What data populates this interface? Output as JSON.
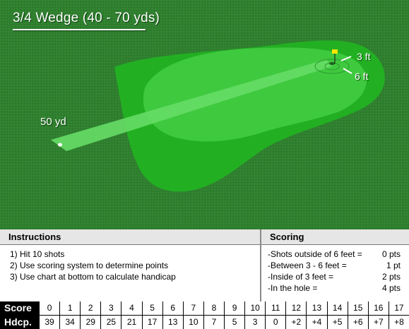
{
  "title": "3/4 Wedge (40 - 70 yds)",
  "green": {
    "labels": {
      "distance": "50 yd",
      "ring_inner": "3 ft",
      "ring_outer": "6 ft"
    },
    "icons": {
      "flag": "flag-icon",
      "ball": "ball-icon"
    },
    "colors": {
      "rough": "#2e7d2e",
      "fringe": "#2bb52b",
      "green": "#4fd64f",
      "tee_line": "#7be87b"
    }
  },
  "instructions": {
    "header": "Instructions",
    "items": [
      "1) Hit 10 shots",
      "2) Use scoring system to determine points",
      "3) Use chart at bottom to calculate handicap"
    ]
  },
  "scoring": {
    "header": "Scoring",
    "rules": [
      {
        "label": "-Shots outside of 6 feet =",
        "value": "0 pts"
      },
      {
        "label": "-Between 3 - 6 feet =",
        "value": "1 pt"
      },
      {
        "label": "-Inside of 3 feet =",
        "value": "2 pts"
      },
      {
        "label": "-In the hole =",
        "value": "4 pts"
      }
    ]
  },
  "table": {
    "score_label": "Score",
    "hdcp_label": "Hdcp.",
    "scores": [
      "0",
      "1",
      "2",
      "3",
      "4",
      "5",
      "6",
      "7",
      "8",
      "9",
      "10",
      "11",
      "12",
      "13",
      "14",
      "15",
      "16",
      "17"
    ],
    "handicaps": [
      "39",
      "34",
      "29",
      "25",
      "21",
      "17",
      "13",
      "10",
      "7",
      "5",
      "3",
      "0",
      "+2",
      "+4",
      "+5",
      "+6",
      "+7",
      "+8"
    ]
  }
}
